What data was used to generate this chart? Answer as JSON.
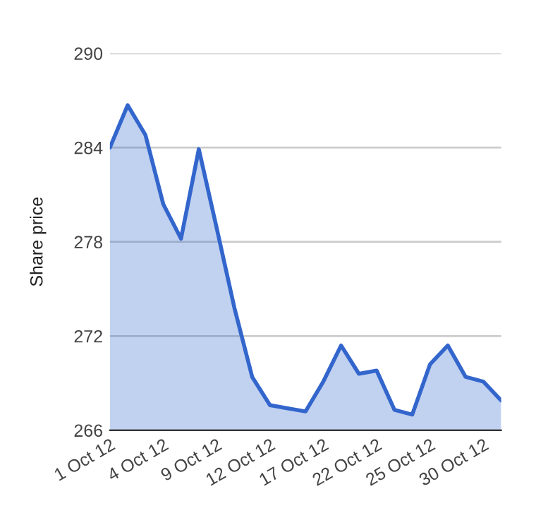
{
  "chart_data": {
    "type": "area",
    "ylabel": "Share price",
    "categories": [
      "1 Oct 12",
      null,
      null,
      "4 Oct 12",
      null,
      null,
      "9 Oct 12",
      null,
      null,
      "12 Oct 12",
      null,
      null,
      "17 Oct 12",
      null,
      null,
      "22 Oct 12",
      null,
      null,
      "25 Oct 12",
      null,
      null,
      "30 Oct 12",
      null
    ],
    "series": [
      {
        "color": "#3366cc",
        "values": [
          284.0,
          286.7,
          284.8,
          280.4,
          278.2,
          283.9,
          278.9,
          273.8,
          269.4,
          267.6,
          267.4,
          267.2,
          269.1,
          271.4,
          269.6,
          269.8,
          267.3,
          267.0,
          270.2,
          271.4,
          269.4,
          269.1,
          267.9
        ]
      }
    ],
    "ylim": [
      266,
      290
    ],
    "yticks": [
      266,
      272,
      278,
      284,
      290
    ],
    "grid": "y"
  }
}
